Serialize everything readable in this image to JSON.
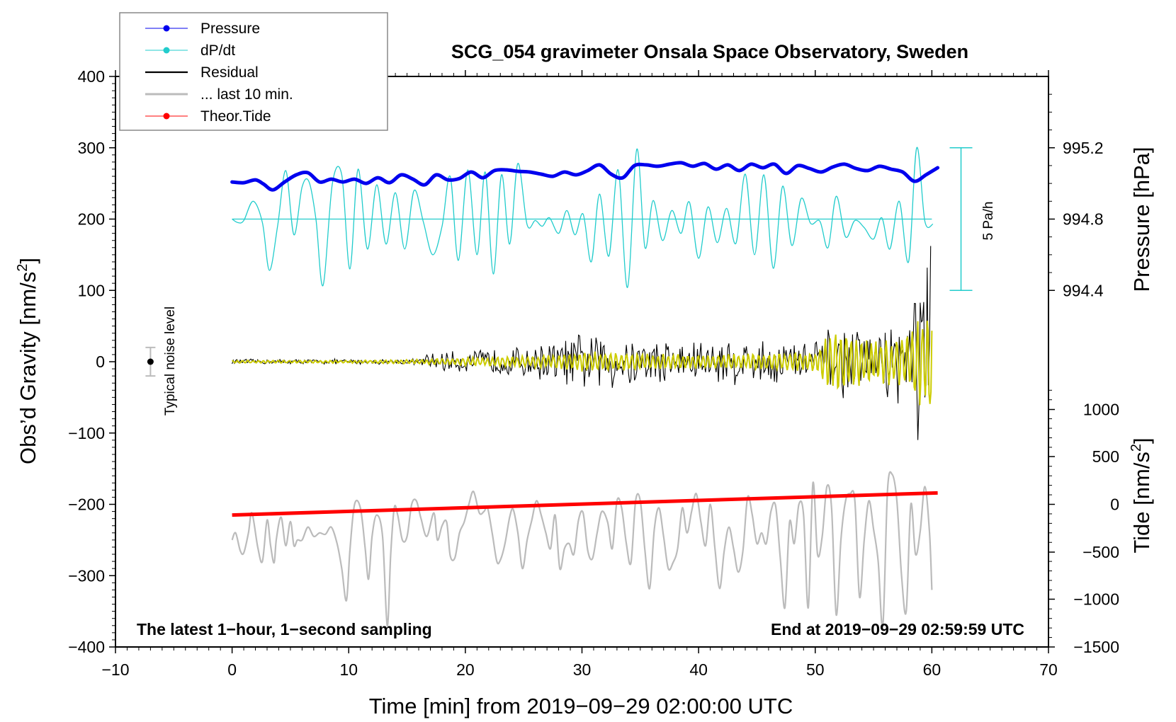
{
  "chart_data": {
    "type": "line",
    "title": "SCG_054 gravimeter Onsala Space Observatory, Sweden",
    "xlabel": "Time [min] from 2019−09−29 02:00:00 UTC",
    "ylabel_left": "Obs’d Gravity [nm/s²]",
    "ylabel_left_base": "Obs’d Gravity [nm/s",
    "ylabel_right_top": "Pressure [hPa]",
    "ylabel_right_bottom_base": "Tide [nm/s",
    "unit_sup": "2",
    "unit_close": "]",
    "xlim": [
      -10,
      70
    ],
    "ylim_left": [
      -400,
      400
    ],
    "x_ticks": [
      -10,
      0,
      10,
      20,
      30,
      40,
      50,
      60,
      70
    ],
    "x_tick_labels": [
      "−10",
      "0",
      "10",
      "20",
      "30",
      "40",
      "50",
      "60",
      "70"
    ],
    "y_ticks_left": [
      400,
      300,
      200,
      100,
      0,
      -100,
      -200,
      -300,
      -400
    ],
    "y_tick_labels_left": [
      "400",
      "300",
      "200",
      "100",
      "0",
      "−100",
      "−200",
      "−300",
      "−400"
    ],
    "pressure_axis": {
      "ticks": [
        995.2,
        994.8,
        994.4
      ],
      "tick_labels": [
        "995.2",
        "994.8",
        "994.4"
      ],
      "gravity_equiv": [
        300,
        200,
        100
      ]
    },
    "tide_axis": {
      "ticks": [
        1000,
        500,
        0,
        -500,
        -1000,
        -1500
      ],
      "tick_labels": [
        "1000",
        "500",
        "0",
        "−500",
        "−1000",
        "−1500"
      ],
      "gravity_equiv": [
        -67,
        -133,
        -200,
        -267,
        -333,
        -400
      ]
    },
    "scale_bar": {
      "label": "5 Pa/h",
      "from": 100,
      "to": 300,
      "x": 62.5
    },
    "noise_marker": {
      "label": "Typical noise level",
      "x": -7,
      "y": 0,
      "err": 20
    },
    "annotations": {
      "bottom_left": "The latest 1−hour, 1−second sampling",
      "bottom_right": "End at 2019−09−29 02:59:59 UTC"
    },
    "legend": {
      "placement": "top-left",
      "entries": [
        {
          "label": "Pressure",
          "color": "#0000ee",
          "marker": true
        },
        {
          "label": "dP/dt",
          "color": "#22cccc",
          "marker": true
        },
        {
          "label": "Residual",
          "color": "#000000",
          "marker": false
        },
        {
          "label": "... last 10 min.",
          "color": "#bbbbbb",
          "marker": false
        },
        {
          "label": "Theor.Tide",
          "color": "#ff0000",
          "marker": true
        }
      ]
    },
    "series": [
      {
        "name": "Pressure",
        "color": "#0000ee",
        "units": "nm/s2 plot-equivalent",
        "x": [
          0,
          1,
          2,
          2.7,
          3.5,
          4.5,
          5.5,
          6.5,
          7.5,
          8.5,
          9.5,
          10.5,
          11.5,
          12.5,
          13.5,
          14.5,
          15.5,
          16.5,
          17.5,
          18.5,
          19.5,
          20.5,
          21.5,
          22.5,
          23.5,
          24.5,
          25.5,
          26.5,
          27.5,
          28.5,
          29.5,
          30.5,
          31.5,
          32.5,
          33.5,
          34.5,
          35.5,
          36.5,
          37.5,
          38.5,
          39.5,
          40.5,
          41.5,
          42.5,
          43.5,
          44.5,
          45.5,
          46.5,
          47.5,
          48.5,
          49.5,
          50.5,
          51.5,
          52.5,
          53.5,
          54.5,
          55.5,
          56.5,
          57.5,
          58.5,
          59.5,
          60.5
        ],
        "values": [
          252,
          251,
          255,
          249,
          241,
          252,
          262,
          265,
          252,
          256,
          252,
          256,
          250,
          258,
          251,
          262,
          256,
          248,
          262,
          255,
          257,
          266,
          258,
          268,
          269,
          267,
          266,
          263,
          260,
          266,
          262,
          268,
          276,
          263,
          258,
          275,
          276,
          274,
          277,
          279,
          274,
          278,
          270,
          276,
          268,
          277,
          272,
          277,
          264,
          275,
          271,
          266,
          273,
          277,
          271,
          268,
          274,
          270,
          266,
          253,
          262,
          272
        ]
      },
      {
        "name": "dP/dt",
        "color": "#22cccc",
        "baseline": 200,
        "x": [
          0,
          0.5,
          1,
          1.8,
          2.6,
          3.2,
          3.9,
          4.6,
          5.3,
          6.0,
          6.6,
          7.2,
          7.8,
          8.6,
          9.4,
          10.1,
          10.8,
          11.6,
          12.4,
          13.2,
          14.0,
          14.8,
          15.6,
          16.4,
          17.2,
          18.0,
          18.7,
          19.4,
          20.2,
          21.0,
          21.7,
          22.4,
          23.1,
          23.8,
          24.5,
          25.3,
          26.0,
          26.6,
          27.2,
          28.0,
          28.7,
          29.4,
          30.1,
          30.8,
          31.5,
          32.3,
          33.1,
          33.9,
          34.7,
          35.4,
          36.1,
          36.9,
          37.7,
          38.5,
          39.2,
          40.0,
          40.8,
          41.6,
          42.4,
          43.2,
          44.0,
          44.8,
          45.6,
          46.4,
          47.2,
          48.0,
          48.8,
          49.6,
          50.4,
          51.1,
          51.8,
          52.6,
          53.4,
          54.2,
          55.0,
          55.7,
          56.4,
          57.2,
          58.0,
          58.7,
          59.4,
          60.1
        ],
        "values": [
          200,
          195,
          198,
          225,
          195,
          128,
          190,
          268,
          178,
          245,
          252,
          198,
          107,
          250,
          262,
          130,
          270,
          158,
          248,
          165,
          237,
          158,
          240,
          196,
          150,
          190,
          260,
          142,
          269,
          150,
          266,
          123,
          262,
          165,
          278,
          192,
          198,
          190,
          202,
          180,
          212,
          178,
          207,
          140,
          235,
          148,
          269,
          104,
          298,
          160,
          226,
          170,
          212,
          180,
          224,
          145,
          217,
          167,
          215,
          166,
          263,
          150,
          262,
          131,
          246,
          163,
          229,
          194,
          197,
          160,
          232,
          175,
          198,
          188,
          172,
          202,
          158,
          225,
          140,
          300,
          197,
          193
        ]
      },
      {
        "name": "Residual",
        "color": "#000000",
        "envelope": true,
        "x": [
          0,
          5,
          10,
          15,
          16,
          17,
          18,
          20,
          22,
          24,
          25,
          26,
          28,
          30,
          32,
          34,
          36,
          38,
          40,
          42,
          44,
          46,
          48,
          50,
          51,
          52,
          53,
          54,
          55,
          56,
          57,
          58,
          59,
          60
        ],
        "amplitude": [
          4,
          4,
          4,
          4,
          5,
          15,
          15,
          17,
          20,
          23,
          24,
          28,
          32,
          45,
          45,
          42,
          38,
          35,
          35,
          38,
          35,
          35,
          35,
          36,
          50,
          60,
          45,
          45,
          50,
          55,
          60,
          100,
          150,
          190
        ]
      },
      {
        "name": "Yellow filtered residual",
        "color": "#cccc00",
        "envelope": true,
        "x": [
          0,
          10,
          15,
          17,
          20,
          25,
          28,
          30,
          35,
          40,
          45,
          50,
          51,
          52,
          55,
          57,
          58,
          59,
          60
        ],
        "amplitude": [
          2,
          2,
          3,
          4,
          6,
          8,
          10,
          15,
          12,
          10,
          12,
          14,
          40,
          50,
          30,
          35,
          45,
          70,
          80
        ]
      },
      {
        "name": "... last 10 min.",
        "color": "#bbbbbb",
        "x": [
          0,
          0.3,
          0.7,
          1.0,
          1.4,
          1.7,
          2.2,
          2.6,
          3.0,
          3.3,
          3.6,
          3.8,
          4.2,
          4.6,
          5.0,
          5.3,
          5.6,
          6.0,
          6.5,
          7.0,
          7.5,
          8.0,
          8.5,
          9.0,
          9.4,
          9.8,
          10.1,
          10.5,
          11.0,
          11.4,
          11.7,
          12.0,
          12.4,
          12.9,
          13.3,
          13.6,
          13.9,
          14.2,
          14.6,
          15.0,
          15.4,
          15.8,
          16.2,
          16.7,
          17.3,
          17.6,
          18.0,
          18.4,
          18.7,
          19.1,
          19.5,
          19.9,
          20.3,
          20.7,
          21.2,
          21.6,
          21.9,
          22.3,
          22.7,
          23.0,
          23.4,
          23.8,
          24.1,
          24.5,
          24.9,
          25.3,
          25.7,
          26.1,
          26.5,
          26.9,
          27.3,
          27.7,
          28.1,
          28.5,
          28.9,
          29.3,
          29.7,
          30.1,
          30.5,
          30.9,
          31.3,
          31.7,
          32.2,
          32.6,
          33.0,
          33.4,
          33.8,
          34.2,
          34.6,
          35.0,
          35.4,
          35.8,
          36.2,
          36.6,
          37.0,
          37.4,
          37.8,
          38.2,
          38.6,
          39.0,
          39.4,
          39.8,
          40.2,
          40.6,
          41.0,
          41.4,
          41.8,
          42.2,
          42.6,
          43.0,
          43.4,
          43.8,
          44.2,
          44.6,
          45.0,
          45.4,
          45.8,
          46.2,
          46.6,
          47.0,
          47.4,
          47.8,
          48.2,
          48.6,
          49.0,
          49.4,
          49.8,
          50.2,
          50.6,
          51.0,
          51.4,
          51.8,
          52.2,
          52.6,
          53.0,
          53.4,
          53.8,
          54.2,
          54.6,
          55.0,
          55.4,
          55.8,
          56.2,
          56.6,
          57.0,
          57.4,
          57.8,
          58.2,
          58.6,
          59.0,
          59.4,
          59.8,
          60.0
        ],
        "values": [
          -250,
          -240,
          -265,
          -268,
          -240,
          -212,
          -260,
          -280,
          -222,
          -258,
          -282,
          -248,
          -218,
          -258,
          -224,
          -258,
          -250,
          -250,
          -232,
          -245,
          -240,
          -242,
          -232,
          -255,
          -290,
          -335,
          -265,
          -200,
          -205,
          -260,
          -305,
          -245,
          -215,
          -245,
          -370,
          -270,
          -205,
          -215,
          -250,
          -245,
          -200,
          -195,
          -220,
          -245,
          -212,
          -250,
          -230,
          -225,
          -272,
          -275,
          -240,
          -225,
          -200,
          -182,
          -212,
          -210,
          -205,
          -240,
          -280,
          -278,
          -255,
          -218,
          -207,
          -240,
          -290,
          -250,
          -222,
          -195,
          -215,
          -240,
          -262,
          -215,
          -290,
          -262,
          -255,
          -270,
          -222,
          -212,
          -265,
          -276,
          -240,
          -210,
          -225,
          -262,
          -195,
          -205,
          -255,
          -282,
          -195,
          -195,
          -265,
          -318,
          -235,
          -205,
          -245,
          -290,
          -282,
          -262,
          -205,
          -240,
          -210,
          -185,
          -225,
          -258,
          -200,
          -262,
          -318,
          -265,
          -232,
          -262,
          -295,
          -265,
          -190,
          -215,
          -255,
          -240,
          -255,
          -210,
          -202,
          -275,
          -345,
          -225,
          -255,
          -200,
          -215,
          -345,
          -170,
          -270,
          -245,
          -175,
          -205,
          -355,
          -250,
          -195,
          -185,
          -195,
          -330,
          -250,
          -195,
          -235,
          -280,
          -370,
          -180,
          -158,
          -195,
          -300,
          -350,
          -200,
          -270,
          -238,
          -175,
          -240,
          -320
        ]
      },
      {
        "name": "Theor.Tide",
        "color": "#ff0000",
        "x": [
          0,
          60.5
        ],
        "values": [
          -215,
          -184
        ]
      }
    ]
  }
}
